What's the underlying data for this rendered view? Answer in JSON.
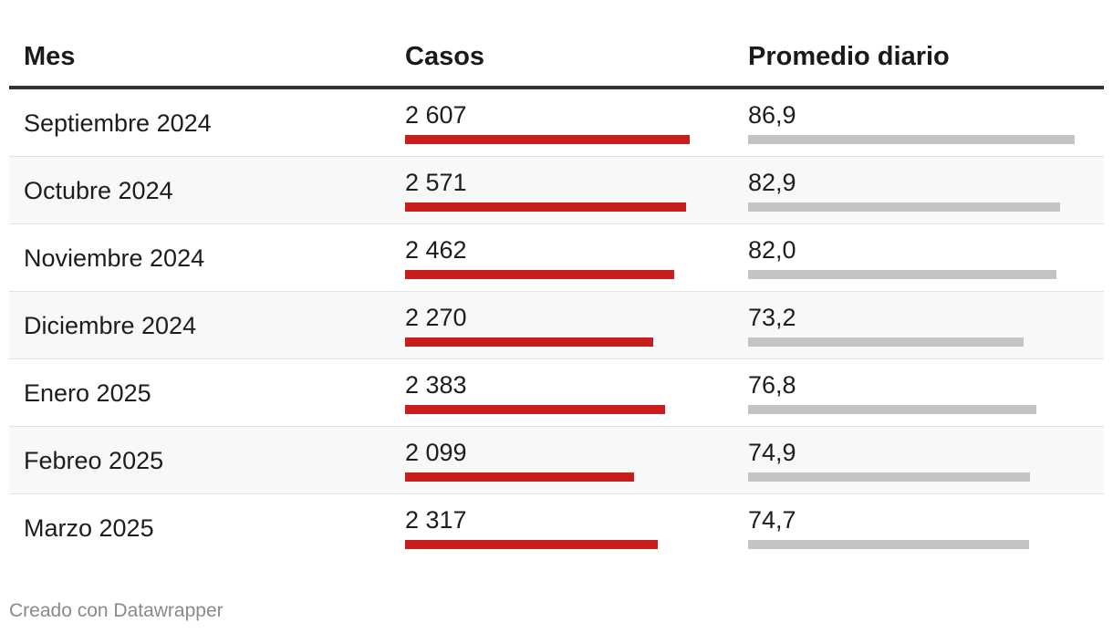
{
  "table": {
    "headers": {
      "month": "Mes",
      "cases": "Casos",
      "avg": "Promedio diario"
    }
  },
  "colors": {
    "cases_bar": "#c71e1d",
    "avg_bar": "#c4c4c4",
    "header_rule": "#333333"
  },
  "chart_data": {
    "type": "table",
    "columns": [
      "Mes",
      "Casos",
      "Promedio diario"
    ],
    "rows": [
      {
        "month": "Septiembre 2024",
        "cases": 2607,
        "cases_label": "2 607",
        "avg": 86.9,
        "avg_label": "86,9"
      },
      {
        "month": "Octubre 2024",
        "cases": 2571,
        "cases_label": "2 571",
        "avg": 82.9,
        "avg_label": "82,9"
      },
      {
        "month": "Noviembre 2024",
        "cases": 2462,
        "cases_label": "2 462",
        "avg": 82.0,
        "avg_label": "82,0"
      },
      {
        "month": "Diciembre 2024",
        "cases": 2270,
        "cases_label": "2 270",
        "avg": 73.2,
        "avg_label": "73,2"
      },
      {
        "month": "Enero 2025",
        "cases": 2383,
        "cases_label": "2 383",
        "avg": 76.8,
        "avg_label": "76,8"
      },
      {
        "month": "Febreo 2025",
        "cases": 2099,
        "cases_label": "2 099",
        "avg": 74.9,
        "avg_label": "74,9"
      },
      {
        "month": "Marzo 2025",
        "cases": 2317,
        "cases_label": "2 317",
        "avg": 74.7,
        "avg_label": "74,7"
      }
    ]
  },
  "footer": {
    "credit": "Creado con Datawrapper"
  }
}
